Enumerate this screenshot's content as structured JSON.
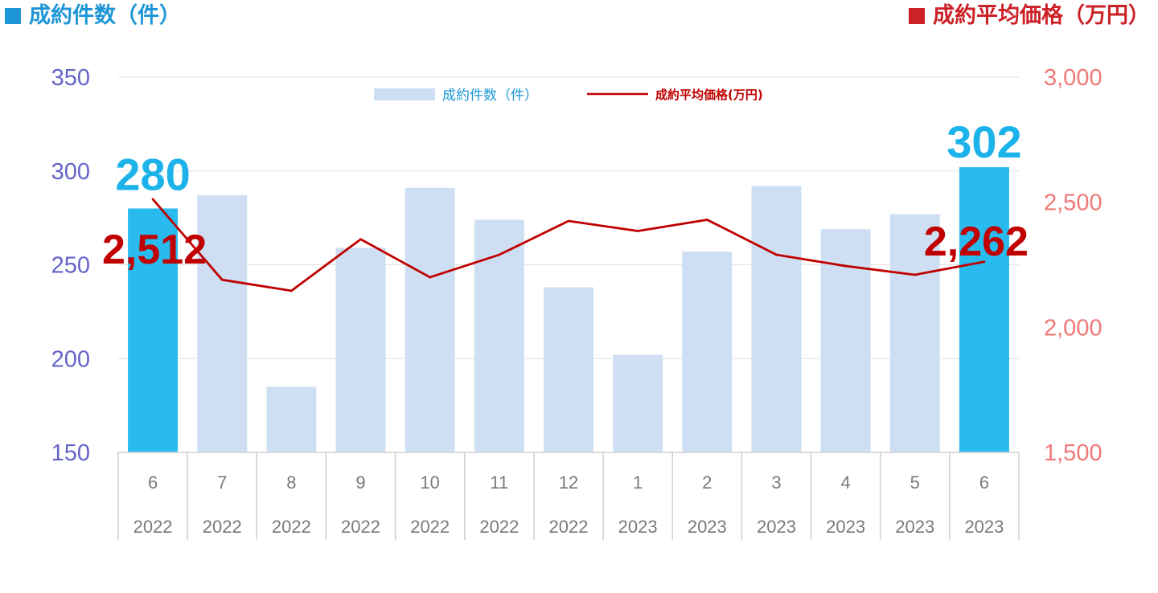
{
  "header": {
    "left_title": "成約件数（件）",
    "right_title": "成約平均価格（万円）",
    "left_color": "#1e96d6",
    "right_color": "#cc2127"
  },
  "chart_data": {
    "type": "bar+line",
    "categories": [
      "6",
      "7",
      "8",
      "9",
      "10",
      "11",
      "12",
      "1",
      "2",
      "3",
      "4",
      "5",
      "6"
    ],
    "years": [
      "2022",
      "2022",
      "2022",
      "2022",
      "2022",
      "2022",
      "2022",
      "2023",
      "2023",
      "2023",
      "2023",
      "2023",
      "2023"
    ],
    "series": [
      {
        "name": "成約件数（件）",
        "type": "bar",
        "axis": "left",
        "values": [
          280,
          287,
          185,
          259,
          291,
          274,
          238,
          202,
          257,
          292,
          269,
          277,
          302
        ],
        "color": "#cfdff3",
        "highlight_color": "#29bbee",
        "highlight_indices": [
          0,
          12
        ]
      },
      {
        "name": "成約平均価格(万円)",
        "type": "line",
        "axis": "right",
        "values": [
          2512,
          2190,
          2146,
          2352,
          2200,
          2290,
          2425,
          2385,
          2430,
          2290,
          2245,
          2210,
          2262
        ],
        "color": "#c00000"
      }
    ],
    "y_left": {
      "min": 150,
      "max": 350,
      "ticks": [
        "150",
        "200",
        "250",
        "300",
        "350"
      ]
    },
    "y_right": {
      "min": 1500,
      "max": 3000,
      "ticks": [
        "1,500",
        "2,000",
        "2,500",
        "3,000"
      ]
    },
    "annotations": {
      "bar_first": "280",
      "bar_last": "302",
      "line_first": "2,512",
      "line_last": "2,262"
    },
    "grid": "horizontal",
    "legend": "top-center"
  }
}
